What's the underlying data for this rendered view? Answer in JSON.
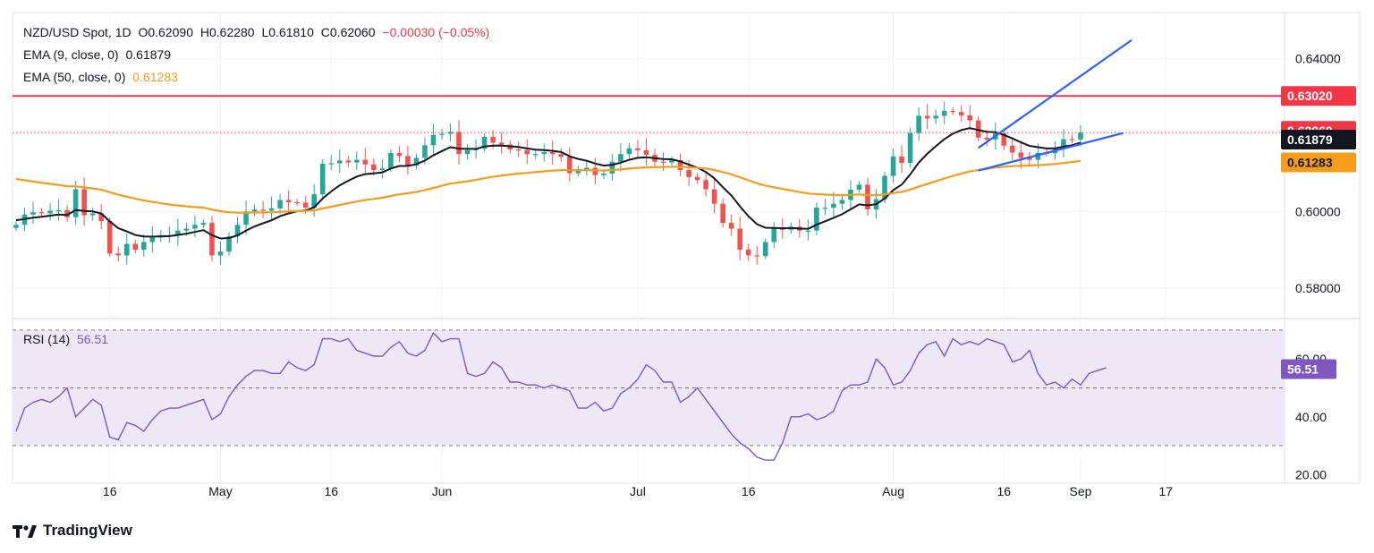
{
  "header": {
    "symbol": "NZD/USD Spot, 1D",
    "open": "O0.62090",
    "high": "H0.62280",
    "low": "L0.61810",
    "close": "C0.62060",
    "change": "−0.00030 (−0.05%)",
    "ema9_label": "EMA (9, close, 0)",
    "ema9_value": "0.61879",
    "ema50_label": "EMA (50, close, 0)",
    "ema50_value": "0.61283",
    "rsi_label": "RSI (14)",
    "rsi_value": "56.51"
  },
  "brand": "TradingView",
  "colors": {
    "up": "#26a69a",
    "down": "#ef5350",
    "ema9": "#131722",
    "ema50": "#f59c1a",
    "resistance": "#f23645",
    "channel": "#2962ff",
    "rsi": "#7e57c2",
    "rsi_band": "#ede7f6"
  },
  "chart_data": [
    {
      "type": "candlestick",
      "title": "NZD/USD Spot, 1D",
      "ylim": [
        0.572,
        0.652
      ],
      "y_ticks": [
        "0.64000",
        "0.60000",
        "0.58000"
      ],
      "x_ticks": [
        "16",
        "May",
        "16",
        "Jun",
        "Jul",
        "16",
        "Aug",
        "16",
        "Sep",
        "17"
      ],
      "price_labels": [
        {
          "text": "0.63020",
          "value": 0.6302,
          "bg": "#f23645",
          "fg": "#ffffff"
        },
        {
          "text": "0.62060",
          "value": 0.6206,
          "bg": "#f23645",
          "fg": "#ffffff"
        },
        {
          "text": "0.61879",
          "value": 0.61879,
          "bg": "#131722",
          "fg": "#ffffff"
        },
        {
          "text": "0.61283",
          "value": 0.61283,
          "bg": "#f59c1a",
          "fg": "#131722"
        }
      ],
      "resistance": 0.6302,
      "last_close": 0.6206,
      "closes": [
        0.5965,
        0.5992,
        0.5998,
        0.5995,
        0.6002,
        0.6003,
        0.5985,
        0.6058,
        0.599,
        0.5995,
        0.5975,
        0.589,
        0.5885,
        0.5915,
        0.59,
        0.592,
        0.5932,
        0.5938,
        0.5938,
        0.595,
        0.5955,
        0.5965,
        0.597,
        0.5885,
        0.5895,
        0.5935,
        0.5965,
        0.6,
        0.6005,
        0.6002,
        0.6008,
        0.603,
        0.6024,
        0.6023,
        0.601,
        0.6045,
        0.6125,
        0.6126,
        0.6133,
        0.6128,
        0.6135,
        0.6123,
        0.6108,
        0.6112,
        0.6153,
        0.6145,
        0.612,
        0.614,
        0.6173,
        0.62,
        0.6203,
        0.6208,
        0.615,
        0.616,
        0.6164,
        0.6195,
        0.618,
        0.6175,
        0.6162,
        0.616,
        0.615,
        0.615,
        0.6155,
        0.615,
        0.6143,
        0.61,
        0.611,
        0.6114,
        0.6095,
        0.6099,
        0.613,
        0.615,
        0.6165,
        0.616,
        0.6148,
        0.613,
        0.6128,
        0.6134,
        0.6108,
        0.609,
        0.6082,
        0.6058,
        0.602,
        0.597,
        0.5955,
        0.59,
        0.5885,
        0.5883,
        0.592,
        0.5955,
        0.5952,
        0.596,
        0.595,
        0.595,
        0.601,
        0.601,
        0.602,
        0.603,
        0.6057,
        0.607,
        0.6005,
        0.6032,
        0.6093,
        0.6144,
        0.6127,
        0.6205,
        0.625,
        0.6243,
        0.625,
        0.6263,
        0.626,
        0.6251,
        0.6238,
        0.6193,
        0.6188,
        0.6204,
        0.6172,
        0.6154,
        0.614,
        0.6135,
        0.6153,
        0.6152,
        0.6165,
        0.6189,
        0.6188,
        0.6206
      ],
      "ema_series": [
        {
          "name": "EMA (9, close, 0)",
          "color": "#131722"
        },
        {
          "name": "EMA (50, close, 0)",
          "color": "#f59c1a"
        }
      ],
      "channel": {
        "upper": [
          [
            113,
            0.6166
          ],
          [
            131,
            0.6448
          ]
        ],
        "lower": [
          [
            113,
            0.6107
          ],
          [
            130,
            0.6205
          ]
        ]
      }
    },
    {
      "type": "line",
      "title": "RSI (14)",
      "ylim": [
        17,
        74
      ],
      "y_ticks": [
        "60.00",
        "40.00",
        "20.00"
      ],
      "bands": [
        70,
        50,
        30
      ],
      "last": 56.51,
      "values": [
        35,
        43,
        45,
        46,
        45,
        47,
        50,
        40,
        43,
        46,
        44,
        33,
        32,
        38,
        37,
        35,
        39,
        42,
        43,
        43,
        44,
        45,
        46,
        39,
        41,
        47,
        51,
        54,
        56,
        56,
        55,
        55,
        59,
        57,
        56,
        58,
        67,
        67,
        66,
        67,
        63,
        62,
        61,
        61,
        64,
        66,
        62,
        61,
        63,
        69,
        66,
        67,
        67,
        55,
        54,
        55,
        59,
        57,
        52,
        52,
        51,
        51,
        50,
        51,
        50,
        49,
        43,
        43,
        45,
        42,
        43,
        48,
        50,
        53,
        58,
        56,
        52,
        52,
        45,
        47,
        50,
        46,
        42,
        38,
        34,
        31,
        29,
        26,
        25,
        25,
        31,
        40,
        40,
        41,
        39,
        40,
        42,
        49,
        51,
        51,
        52,
        60,
        57,
        51,
        52,
        56,
        62,
        65,
        66,
        61,
        67,
        65,
        66,
        65,
        67,
        66,
        65,
        59,
        60,
        63,
        55,
        51,
        52,
        50,
        53,
        51,
        55,
        56,
        57
      ]
    }
  ]
}
